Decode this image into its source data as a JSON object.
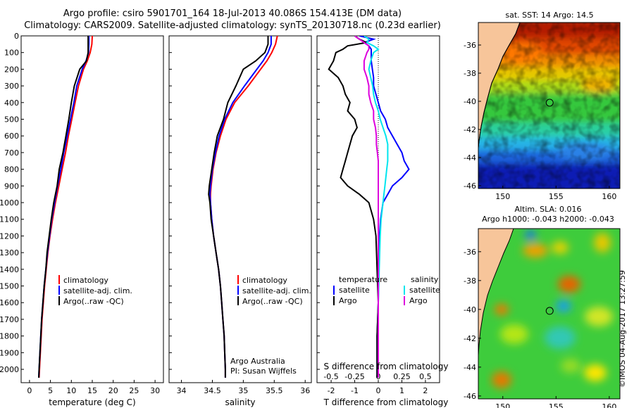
{
  "header": {
    "title_line1": "Argo profile: csiro 5901701_164 18-Jul-2013 40.086S 154.413E (DM data)",
    "title_line2": "Climatology: CARS2009. Satellite-adjusted climatology: synTS_20130718.nc (0.23d earlier)"
  },
  "footer": {
    "stamp": "©IMOS 04-Aug-2017 13:27:59",
    "argo_line1": "Argo Australia",
    "argo_line2": "PI: Susan Wijffels"
  },
  "colors": {
    "climatology": "#ff0000",
    "satellite": "#0000ff",
    "argo": "#000000",
    "sal_satellite": "#00e5ee",
    "sal_argo": "#dd00dd",
    "land": "#f7c59a"
  },
  "chart_data": [
    {
      "type": "line",
      "panel": "temperature",
      "xlabel": "temperature (deg C)",
      "ylabel": "",
      "xlim": [
        -2,
        32
      ],
      "ylim": [
        2080,
        0
      ],
      "xticks": [
        0,
        5,
        10,
        15,
        20,
        25,
        30
      ],
      "yticks": [
        0,
        100,
        200,
        300,
        400,
        500,
        600,
        700,
        800,
        900,
        1000,
        1100,
        1200,
        1300,
        1400,
        1500,
        1600,
        1700,
        1800,
        1900,
        2000
      ],
      "depth": [
        0,
        50,
        100,
        150,
        200,
        300,
        400,
        500,
        600,
        700,
        800,
        900,
        1000,
        1100,
        1200,
        1300,
        1400,
        1500,
        1600,
        1700,
        1800,
        1900,
        2000,
        2050
      ],
      "series": [
        {
          "name": "climatology",
          "values": [
            15.0,
            14.9,
            14.5,
            13.8,
            12.9,
            11.7,
            10.9,
            10.1,
            9.3,
            8.6,
            7.8,
            7.0,
            6.2,
            5.5,
            4.9,
            4.4,
            4.0,
            3.6,
            3.3,
            3.0,
            2.8,
            2.6,
            2.4,
            2.3
          ]
        },
        {
          "name": "satellite-adj. clim.",
          "values": [
            14.2,
            14.2,
            14.1,
            13.5,
            12.6,
            11.3,
            10.6,
            9.8,
            9.0,
            8.2,
            7.5,
            6.7,
            6.0,
            5.3,
            4.8,
            4.3,
            3.9,
            3.5,
            3.2,
            2.9,
            2.7,
            2.5,
            2.3,
            2.2
          ]
        },
        {
          "name": "Argo(..raw -QC)",
          "values": [
            14.0,
            14.0,
            14.0,
            13.6,
            12.0,
            10.7,
            10.0,
            9.4,
            8.7,
            8.0,
            7.1,
            6.6,
            5.8,
            5.2,
            4.7,
            4.2,
            3.9,
            3.5,
            3.2,
            2.9,
            2.7,
            2.5,
            2.3,
            2.2
          ]
        }
      ],
      "legend": [
        "climatology",
        "satellite-adj. clim.",
        "Argo(..raw -QC)"
      ]
    },
    {
      "type": "line",
      "panel": "salinity",
      "xlabel": "salinity",
      "ylabel": "",
      "xlim": [
        33.8,
        36.1
      ],
      "ylim": [
        2080,
        0
      ],
      "xticks": [
        34,
        34.5,
        35,
        35.5,
        36
      ],
      "xticklabels": [
        "34",
        "34.5",
        "35",
        "35.5",
        "36"
      ],
      "depth": [
        0,
        50,
        100,
        150,
        200,
        300,
        400,
        500,
        600,
        700,
        800,
        900,
        950,
        1000,
        1100,
        1200,
        1300,
        1400,
        1500,
        1600,
        1700,
        1800,
        1900,
        2000,
        2050
      ],
      "series": [
        {
          "name": "climatology",
          "values": [
            35.55,
            35.52,
            35.46,
            35.38,
            35.28,
            35.08,
            34.86,
            34.72,
            34.63,
            34.56,
            34.51,
            34.48,
            34.47,
            34.47,
            34.49,
            34.52,
            34.56,
            34.6,
            34.63,
            34.65,
            34.67,
            34.69,
            34.7,
            34.71,
            34.71
          ]
        },
        {
          "name": "satellite-adj. clim.",
          "values": [
            35.45,
            35.45,
            35.4,
            35.32,
            35.22,
            35.02,
            34.83,
            34.7,
            34.61,
            34.55,
            34.5,
            34.47,
            34.46,
            34.47,
            34.49,
            34.52,
            34.56,
            34.6,
            34.63,
            34.65,
            34.67,
            34.69,
            34.7,
            34.71,
            34.71
          ]
        },
        {
          "name": "Argo(..raw -QC)",
          "values": [
            35.4,
            35.4,
            35.35,
            35.2,
            35.0,
            34.88,
            34.75,
            34.68,
            34.58,
            34.53,
            34.49,
            34.45,
            34.44,
            34.46,
            34.48,
            34.52,
            34.56,
            34.6,
            34.63,
            34.65,
            34.67,
            34.69,
            34.7,
            34.71,
            34.71
          ]
        }
      ],
      "legend": [
        "climatology",
        "satellite-adj. clim.",
        "Argo(..raw -QC)"
      ]
    },
    {
      "type": "line",
      "panel": "difference",
      "xlabel": "T difference from climatology",
      "xlabel_top": "S difference from climatology",
      "xlim": [
        -2.6,
        2.6
      ],
      "ylim": [
        2080,
        0
      ],
      "xticks": [
        -2,
        -1,
        0,
        1,
        2
      ],
      "sticks": [
        -0.5,
        -0.25,
        0,
        0.25,
        0.5
      ],
      "sticklabels": [
        "-0.5",
        "-0.25",
        "0",
        "0.25",
        "0.5"
      ],
      "depth": [
        0,
        20,
        40,
        60,
        80,
        100,
        150,
        200,
        250,
        300,
        350,
        400,
        450,
        500,
        550,
        600,
        650,
        700,
        750,
        800,
        850,
        900,
        950,
        1000,
        1100,
        1200,
        1400,
        1600,
        1800,
        2000,
        2050
      ],
      "series": [
        {
          "name": "temperature satellite",
          "values": [
            -0.8,
            -0.2,
            -0.6,
            -0.4,
            -0.3,
            -0.3,
            -0.3,
            -0.25,
            -0.2,
            -0.2,
            -0.1,
            0.0,
            0.1,
            0.3,
            0.4,
            0.6,
            0.8,
            1.0,
            1.1,
            1.3,
            1.0,
            0.6,
            0.4,
            0.2,
            0.1,
            0.05,
            0.02,
            0.0,
            -0.05,
            -0.05,
            -0.05
          ]
        },
        {
          "name": "temperature Argo",
          "values": [
            -1.0,
            -0.8,
            -0.5,
            -1.3,
            -1.5,
            -1.8,
            -1.9,
            -2.1,
            -1.7,
            -1.5,
            -1.4,
            -1.2,
            -1.3,
            -1.0,
            -0.9,
            -1.1,
            -1.2,
            -1.3,
            -1.4,
            -1.5,
            -1.6,
            -1.3,
            -0.8,
            -0.4,
            -0.2,
            -0.1,
            -0.05,
            0.0,
            -0.05,
            -0.05,
            -0.05
          ]
        },
        {
          "name": "salinity satellite",
          "values": [
            -0.15,
            -0.1,
            -0.12,
            -0.05,
            0.0,
            -0.05,
            -0.08,
            -0.1,
            -0.08,
            -0.06,
            -0.05,
            -0.03,
            0.0,
            0.02,
            0.05,
            0.08,
            0.1,
            0.1,
            0.1,
            0.09,
            0.08,
            0.07,
            0.06,
            0.05,
            0.03,
            0.02,
            0.01,
            0.0,
            0.0,
            0.0,
            0.0
          ]
        },
        {
          "name": "salinity Argo",
          "values": [
            -0.25,
            -0.2,
            -0.15,
            -0.1,
            -0.1,
            -0.12,
            -0.15,
            -0.15,
            -0.12,
            -0.1,
            -0.1,
            -0.08,
            -0.05,
            -0.05,
            -0.03,
            -0.02,
            -0.02,
            -0.01,
            0.0,
            0.0,
            0.0,
            0.0,
            0.0,
            0.0,
            0.0,
            0.0,
            0.0,
            0.0,
            0.0,
            0.0,
            0.0
          ]
        }
      ],
      "legend_headers": [
        "temperature",
        "salinity"
      ],
      "legend": [
        "satellite",
        "Argo",
        "satellite",
        "Argo"
      ]
    },
    {
      "type": "heatmap",
      "panel": "SST map",
      "title": "sat. SST: 14  Argo: 14.5",
      "xlim": [
        147.7,
        161
      ],
      "ylim": [
        -46.2,
        -34.4
      ],
      "xticks": [
        150,
        155,
        160
      ],
      "yticks": [
        -36,
        -38,
        -40,
        -42,
        -44,
        -46
      ],
      "profile_location": [
        154.4,
        -40.1
      ]
    },
    {
      "type": "heatmap",
      "panel": "SLA map",
      "title": "Altim. SLA: 0.016",
      "subtitle": "Argo h1000: -0.043 h2000: -0.043",
      "xlim": [
        147.7,
        161
      ],
      "ylim": [
        -46.2,
        -34.4
      ],
      "xticks": [
        150,
        155,
        160
      ],
      "yticks": [
        -36,
        -38,
        -40,
        -42,
        -44,
        -46
      ],
      "profile_location": [
        154.4,
        -40.1
      ]
    }
  ]
}
